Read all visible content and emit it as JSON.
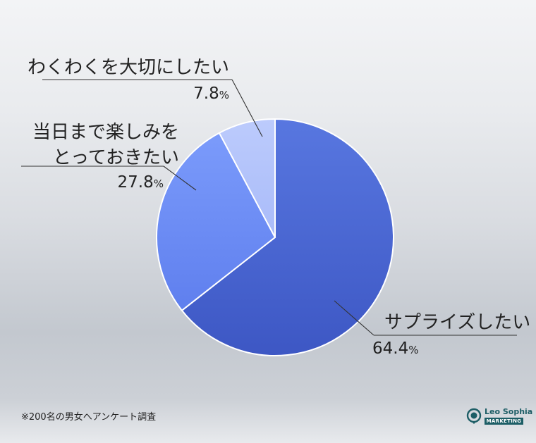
{
  "chart_data": {
    "type": "pie",
    "start_angle_deg": 0,
    "direction": "clockwise",
    "slices": [
      {
        "label": "サプライズしたい",
        "value": 64.4,
        "value_label": "64.4",
        "unit": "%",
        "color": "#4a68d2"
      },
      {
        "label": "当日まで楽しみを\nとっておきたい",
        "value": 27.8,
        "value_label": "27.8",
        "unit": "%",
        "color": "#6e8ef5"
      },
      {
        "label": "わくわくを大切にしたい",
        "value": 7.8,
        "value_label": "7.8",
        "unit": "%",
        "color": "#b3c3fb"
      }
    ]
  },
  "footnote": "※200名の男女へアンケート調査",
  "logo": {
    "name": "Leo Sophia",
    "sub": "MARKETING",
    "icon": "lion-head-icon",
    "color": "#1d5e66"
  }
}
